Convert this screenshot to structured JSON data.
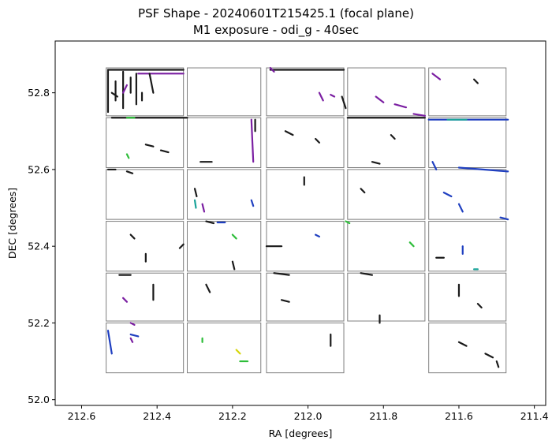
{
  "chart_data": {
    "type": "scatter",
    "title": "PSF Shape - 20240601T215425.1 (focal plane)",
    "subtitle": "M1 exposure - odi_g - 40sec",
    "xlabel": "RA [degrees]",
    "ylabel": "DEC [degrees]",
    "xlim": [
      212.67,
      211.37
    ],
    "ylim": [
      51.985,
      52.935
    ],
    "x_inverted": true,
    "x_ticks": [
      212.6,
      212.4,
      212.2,
      212.0,
      211.8,
      211.6,
      211.4
    ],
    "x_tick_labels": [
      "212.6",
      "212.4",
      "212.2",
      "212.0",
      "211.8",
      "211.6",
      "211.4"
    ],
    "y_ticks": [
      52.0,
      52.2,
      52.4,
      52.6,
      52.8
    ],
    "y_tick_labels": [
      "52.0",
      "52.2",
      "52.4",
      "52.6",
      "52.8"
    ],
    "grid": false,
    "legend": "none",
    "colors": {
      "outline": "#7f7f7f",
      "default": "#1a1a1a",
      "purple": "#7b1fa2",
      "blue": "#1f3fc0",
      "green": "#2ebd3a",
      "teal": "#1aa39a",
      "yellow": "#d6d60a"
    },
    "ccd_rows_dec": [
      [
        52.74,
        52.865
      ],
      [
        52.605,
        52.735
      ],
      [
        52.47,
        52.6
      ],
      [
        52.335,
        52.465
      ],
      [
        52.205,
        52.33
      ],
      [
        52.07,
        52.2
      ]
    ],
    "ccd_cols_ra": [
      [
        212.535,
        212.33
      ],
      [
        212.32,
        212.125
      ],
      [
        212.11,
        211.905
      ],
      [
        211.895,
        211.69
      ],
      [
        211.68,
        211.475
      ]
    ],
    "ccd_missing": [
      [
        5,
        3
      ]
    ],
    "segments": [
      {
        "x": 212.53,
        "y": 52.86,
        "x2": 212.33,
        "y2": 52.86,
        "c": "default"
      },
      {
        "x": 212.53,
        "y": 52.86,
        "x2": 212.53,
        "y2": 52.75,
        "c": "default"
      },
      {
        "x": 212.49,
        "y": 52.855,
        "x2": 212.49,
        "y2": 52.76,
        "c": "default"
      },
      {
        "x": 212.455,
        "y": 52.85,
        "x2": 212.455,
        "y2": 52.77,
        "c": "default"
      },
      {
        "x": 212.51,
        "y": 52.83,
        "x2": 212.51,
        "y2": 52.78,
        "c": "default"
      },
      {
        "x": 212.47,
        "y": 52.84,
        "x2": 212.47,
        "y2": 52.8,
        "c": "default"
      },
      {
        "x": 212.45,
        "y": 52.85,
        "x2": 212.33,
        "y2": 52.85,
        "c": "purple"
      },
      {
        "x": 212.42,
        "y": 52.85,
        "x2": 212.41,
        "y2": 52.8,
        "c": "default"
      },
      {
        "x": 212.52,
        "y": 52.8,
        "x2": 212.505,
        "y2": 52.79,
        "c": "default"
      },
      {
        "x": 212.49,
        "y": 52.8,
        "x2": 212.48,
        "y2": 52.82,
        "c": "purple"
      },
      {
        "x": 212.44,
        "y": 52.8,
        "x2": 212.44,
        "y2": 52.78,
        "c": "default"
      },
      {
        "x": 212.1,
        "y": 52.86,
        "x2": 211.905,
        "y2": 52.86,
        "c": "default"
      },
      {
        "x": 212.1,
        "y": 52.865,
        "x2": 212.09,
        "y2": 52.855,
        "c": "purple"
      },
      {
        "x": 211.91,
        "y": 52.79,
        "x2": 211.9,
        "y2": 52.76,
        "c": "default"
      },
      {
        "x": 211.97,
        "y": 52.8,
        "x2": 211.96,
        "y2": 52.78,
        "c": "purple"
      },
      {
        "x": 211.94,
        "y": 52.795,
        "x2": 211.93,
        "y2": 52.79,
        "c": "purple"
      },
      {
        "x": 211.82,
        "y": 52.79,
        "x2": 211.8,
        "y2": 52.775,
        "c": "purple"
      },
      {
        "x": 211.77,
        "y": 52.77,
        "x2": 211.74,
        "y2": 52.762,
        "c": "purple"
      },
      {
        "x": 211.72,
        "y": 52.745,
        "x2": 211.69,
        "y2": 52.74,
        "c": "purple"
      },
      {
        "x": 211.67,
        "y": 52.85,
        "x2": 211.65,
        "y2": 52.835,
        "c": "purple"
      },
      {
        "x": 211.56,
        "y": 52.835,
        "x2": 211.55,
        "y2": 52.825,
        "c": "default"
      },
      {
        "x": 212.52,
        "y": 52.735,
        "x2": 212.32,
        "y2": 52.735,
        "c": "default"
      },
      {
        "x": 212.48,
        "y": 52.735,
        "x2": 212.46,
        "y2": 52.735,
        "c": "green"
      },
      {
        "x": 212.15,
        "y": 52.73,
        "x2": 212.145,
        "y2": 52.62,
        "c": "purple"
      },
      {
        "x": 212.14,
        "y": 52.73,
        "x2": 212.14,
        "y2": 52.7,
        "c": "default"
      },
      {
        "x": 212.285,
        "y": 52.62,
        "x2": 212.255,
        "y2": 52.62,
        "c": "default"
      },
      {
        "x": 211.895,
        "y": 52.735,
        "x2": 211.69,
        "y2": 52.735,
        "c": "default"
      },
      {
        "x": 211.68,
        "y": 52.73,
        "x2": 211.47,
        "y2": 52.73,
        "c": "blue"
      },
      {
        "x": 211.63,
        "y": 52.73,
        "x2": 211.58,
        "y2": 52.73,
        "c": "teal"
      },
      {
        "x": 212.43,
        "y": 52.665,
        "x2": 212.41,
        "y2": 52.66,
        "c": "default"
      },
      {
        "x": 212.39,
        "y": 52.65,
        "x2": 212.37,
        "y2": 52.645,
        "c": "default"
      },
      {
        "x": 212.48,
        "y": 52.64,
        "x2": 212.475,
        "y2": 52.63,
        "c": "green"
      },
      {
        "x": 212.06,
        "y": 52.7,
        "x2": 212.04,
        "y2": 52.69,
        "c": "default"
      },
      {
        "x": 211.98,
        "y": 52.68,
        "x2": 211.97,
        "y2": 52.67,
        "c": "default"
      },
      {
        "x": 211.83,
        "y": 52.62,
        "x2": 211.81,
        "y2": 52.615,
        "c": "default"
      },
      {
        "x": 211.78,
        "y": 52.69,
        "x2": 211.77,
        "y2": 52.68,
        "c": "default"
      },
      {
        "x": 211.6,
        "y": 52.605,
        "x2": 211.47,
        "y2": 52.595,
        "c": "blue"
      },
      {
        "x": 211.67,
        "y": 52.62,
        "x2": 211.66,
        "y2": 52.6,
        "c": "blue"
      },
      {
        "x": 212.53,
        "y": 52.6,
        "x2": 212.51,
        "y2": 52.6,
        "c": "default"
      },
      {
        "x": 212.48,
        "y": 52.595,
        "x2": 212.465,
        "y2": 52.59,
        "c": "default"
      },
      {
        "x": 212.3,
        "y": 52.55,
        "x2": 212.295,
        "y2": 52.53,
        "c": "default"
      },
      {
        "x": 212.3,
        "y": 52.52,
        "x2": 212.297,
        "y2": 52.5,
        "c": "teal"
      },
      {
        "x": 212.28,
        "y": 52.51,
        "x2": 212.275,
        "y2": 52.49,
        "c": "purple"
      },
      {
        "x": 212.15,
        "y": 52.52,
        "x2": 212.145,
        "y2": 52.505,
        "c": "blue"
      },
      {
        "x": 212.01,
        "y": 52.58,
        "x2": 212.01,
        "y2": 52.56,
        "c": "default"
      },
      {
        "x": 211.86,
        "y": 52.55,
        "x2": 211.85,
        "y2": 52.54,
        "c": "default"
      },
      {
        "x": 211.64,
        "y": 52.54,
        "x2": 211.62,
        "y2": 52.53,
        "c": "blue"
      },
      {
        "x": 211.6,
        "y": 52.51,
        "x2": 211.59,
        "y2": 52.49,
        "c": "blue"
      },
      {
        "x": 211.49,
        "y": 52.475,
        "x2": 211.47,
        "y2": 52.47,
        "c": "blue"
      },
      {
        "x": 212.27,
        "y": 52.465,
        "x2": 212.25,
        "y2": 52.46,
        "c": "default"
      },
      {
        "x": 212.24,
        "y": 52.462,
        "x2": 212.22,
        "y2": 52.462,
        "c": "blue"
      },
      {
        "x": 212.11,
        "y": 52.4,
        "x2": 212.07,
        "y2": 52.4,
        "c": "default"
      },
      {
        "x": 211.9,
        "y": 52.465,
        "x2": 211.89,
        "y2": 52.46,
        "c": "green"
      },
      {
        "x": 212.47,
        "y": 52.43,
        "x2": 212.46,
        "y2": 52.42,
        "c": "default"
      },
      {
        "x": 212.34,
        "y": 52.395,
        "x2": 212.33,
        "y2": 52.405,
        "c": "default"
      },
      {
        "x": 212.43,
        "y": 52.38,
        "x2": 212.43,
        "y2": 52.36,
        "c": "default"
      },
      {
        "x": 212.2,
        "y": 52.43,
        "x2": 212.19,
        "y2": 52.42,
        "c": "green"
      },
      {
        "x": 212.2,
        "y": 52.36,
        "x2": 212.195,
        "y2": 52.34,
        "c": "default"
      },
      {
        "x": 211.98,
        "y": 52.43,
        "x2": 211.97,
        "y2": 52.425,
        "c": "blue"
      },
      {
        "x": 211.73,
        "y": 52.41,
        "x2": 211.72,
        "y2": 52.4,
        "c": "green"
      },
      {
        "x": 211.59,
        "y": 52.4,
        "x2": 211.59,
        "y2": 52.38,
        "c": "blue"
      },
      {
        "x": 211.66,
        "y": 52.37,
        "x2": 211.64,
        "y2": 52.37,
        "c": "default"
      },
      {
        "x": 211.56,
        "y": 52.34,
        "x2": 211.55,
        "y2": 52.34,
        "c": "teal"
      },
      {
        "x": 212.5,
        "y": 52.325,
        "x2": 212.47,
        "y2": 52.325,
        "c": "default"
      },
      {
        "x": 212.49,
        "y": 52.265,
        "x2": 212.48,
        "y2": 52.255,
        "c": "purple"
      },
      {
        "x": 212.41,
        "y": 52.3,
        "x2": 212.41,
        "y2": 52.26,
        "c": "default"
      },
      {
        "x": 212.27,
        "y": 52.3,
        "x2": 212.26,
        "y2": 52.28,
        "c": "default"
      },
      {
        "x": 212.09,
        "y": 52.33,
        "x2": 212.05,
        "y2": 52.325,
        "c": "default"
      },
      {
        "x": 211.86,
        "y": 52.33,
        "x2": 211.83,
        "y2": 52.325,
        "c": "default"
      },
      {
        "x": 212.07,
        "y": 52.26,
        "x2": 212.05,
        "y2": 52.255,
        "c": "default"
      },
      {
        "x": 211.81,
        "y": 52.22,
        "x2": 211.81,
        "y2": 52.2,
        "c": "default"
      },
      {
        "x": 211.6,
        "y": 52.3,
        "x2": 211.6,
        "y2": 52.27,
        "c": "default"
      },
      {
        "x": 211.55,
        "y": 52.25,
        "x2": 211.54,
        "y2": 52.24,
        "c": "default"
      },
      {
        "x": 212.53,
        "y": 52.18,
        "x2": 212.52,
        "y2": 52.12,
        "c": "blue"
      },
      {
        "x": 212.47,
        "y": 52.17,
        "x2": 212.45,
        "y2": 52.165,
        "c": "blue"
      },
      {
        "x": 212.47,
        "y": 52.2,
        "x2": 212.46,
        "y2": 52.195,
        "c": "purple"
      },
      {
        "x": 212.47,
        "y": 52.16,
        "x2": 212.465,
        "y2": 52.15,
        "c": "purple"
      },
      {
        "x": 212.28,
        "y": 52.16,
        "x2": 212.28,
        "y2": 52.15,
        "c": "green"
      },
      {
        "x": 212.19,
        "y": 52.13,
        "x2": 212.18,
        "y2": 52.12,
        "c": "yellow"
      },
      {
        "x": 212.18,
        "y": 52.1,
        "x2": 212.16,
        "y2": 52.1,
        "c": "green"
      },
      {
        "x": 211.94,
        "y": 52.17,
        "x2": 211.94,
        "y2": 52.14,
        "c": "default"
      },
      {
        "x": 211.6,
        "y": 52.15,
        "x2": 211.58,
        "y2": 52.14,
        "c": "default"
      },
      {
        "x": 211.53,
        "y": 52.12,
        "x2": 211.51,
        "y2": 52.11,
        "c": "default"
      },
      {
        "x": 211.5,
        "y": 52.1,
        "x2": 211.495,
        "y2": 52.085,
        "c": "default"
      }
    ],
    "series": [
      {
        "values": []
      }
    ]
  }
}
